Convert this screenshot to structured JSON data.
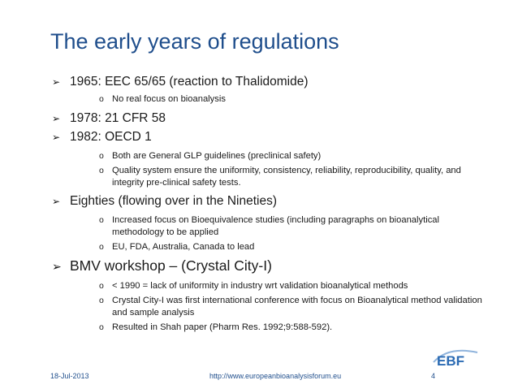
{
  "title": "The early years of regulations",
  "bullets": [
    {
      "text": "1965: EEC 65/65 (reaction to Thalidomide)",
      "subs": [
        "No real focus on bioanalysis"
      ]
    },
    {
      "text": "1978: 21 CFR 58",
      "subs": []
    },
    {
      "text": "1982: OECD 1",
      "subs": [
        "Both are General GLP guidelines (preclinical safety)",
        "Quality system ensure the uniformity, consistency, reliability, reproducibility, quality, and integrity pre-clinical safety tests."
      ]
    },
    {
      "text": "Eighties (flowing over in the Nineties)",
      "subs": [
        "Increased focus on Bioequivalence studies (including paragraphs on bioanalytical methodology to be applied",
        "EU, FDA, Australia, Canada to lead"
      ]
    },
    {
      "text": "BMV workshop – (Crystal City-I)",
      "subs": [
        "< 1990 = lack of uniformity in industry wrt validation bioanalytical methods",
        "Crystal City-I was first international conference with focus on Bioanalytical method validation and sample analysis",
        "Resulted in Shah paper (Pharm Res. 1992;9:588-592)."
      ]
    }
  ],
  "footer": {
    "date": "18-Jul-2013",
    "url": "http://www.europeanbioanalysisforum.eu",
    "page": "4"
  },
  "logo": {
    "text": "EBF",
    "color": "#2a6ab3",
    "accent": "#8fb3dc"
  },
  "colors": {
    "title": "#1f4e8c",
    "text": "#1a1a1a"
  }
}
